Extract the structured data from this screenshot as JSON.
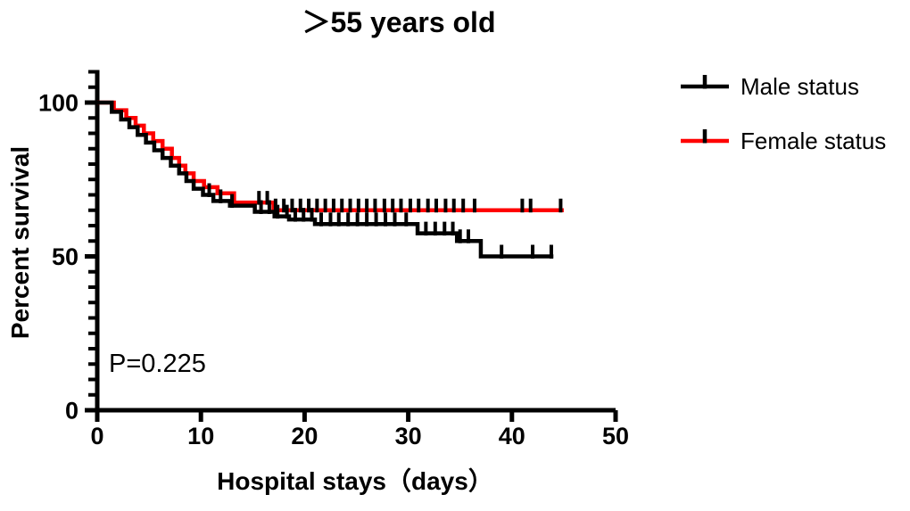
{
  "title": "＞55 years old",
  "chart_data": {
    "type": "line",
    "subtype": "kaplan-meier-step",
    "title": "＞55 years old",
    "xlabel": "Hospital stays（days）",
    "ylabel": "Percent survival",
    "xlim": [
      0,
      50
    ],
    "ylim": [
      0,
      110
    ],
    "x_ticks": [
      0,
      10,
      20,
      30,
      40,
      50
    ],
    "y_major_ticks": [
      0,
      50,
      100
    ],
    "y_minor_tick_step": 5,
    "grid": false,
    "legend_position": "outside-right-top",
    "annotation": {
      "text": "P=0.225",
      "x_day": 1.2,
      "y_pct": 13
    },
    "censor_tick_color": "#000000",
    "series": [
      {
        "name": "Male status",
        "color": "#000000",
        "steps": [
          [
            0,
            100
          ],
          [
            1.4,
            97
          ],
          [
            2.3,
            94.5
          ],
          [
            3.1,
            92
          ],
          [
            3.9,
            89.5
          ],
          [
            4.7,
            87
          ],
          [
            5.5,
            84.5
          ],
          [
            6.3,
            82
          ],
          [
            7.1,
            79.5
          ],
          [
            7.9,
            77
          ],
          [
            8.6,
            74.5
          ],
          [
            9.3,
            72
          ],
          [
            10.2,
            70
          ],
          [
            11.2,
            68
          ],
          [
            12.8,
            66.5
          ],
          [
            15.2,
            64.5
          ],
          [
            17.1,
            63
          ],
          [
            18.5,
            62
          ],
          [
            21.0,
            60.5
          ],
          [
            30.9,
            57.5
          ],
          [
            34.7,
            55
          ],
          [
            37.0,
            50
          ]
        ],
        "end_day": 44.0,
        "censor_days": [
          10.8,
          11.9,
          13.0,
          15.8,
          16.6,
          17.4,
          18.3,
          19.1,
          19.9,
          20.7,
          21.6,
          22.5,
          23.3,
          24.2,
          25.1,
          26.0,
          26.9,
          27.8,
          28.7,
          29.8,
          31.7,
          32.6,
          33.5,
          34.3,
          35.0,
          35.8,
          39.0,
          42.0,
          43.8
        ]
      },
      {
        "name": "Female status",
        "color": "#ff0000",
        "steps": [
          [
            0,
            100
          ],
          [
            1.6,
            97.5
          ],
          [
            2.8,
            95
          ],
          [
            3.7,
            92.5
          ],
          [
            4.5,
            90
          ],
          [
            5.4,
            87.5
          ],
          [
            6.3,
            85
          ],
          [
            7.2,
            82
          ],
          [
            7.9,
            79.5
          ],
          [
            8.5,
            77
          ],
          [
            9.3,
            74.5
          ],
          [
            10.3,
            72.5
          ],
          [
            11.6,
            70.5
          ],
          [
            13.2,
            67.5
          ],
          [
            17.0,
            65
          ]
        ],
        "end_day": 45.0,
        "censor_days": [
          15.6,
          16.4,
          17.2,
          18.0,
          18.8,
          19.6,
          20.4,
          21.2,
          22.0,
          22.8,
          23.6,
          24.4,
          25.2,
          26.0,
          26.8,
          27.7,
          28.5,
          29.3,
          30.2,
          31.0,
          31.9,
          32.7,
          33.6,
          34.4,
          35.3,
          36.4,
          41.0,
          41.8,
          44.7
        ]
      }
    ]
  }
}
